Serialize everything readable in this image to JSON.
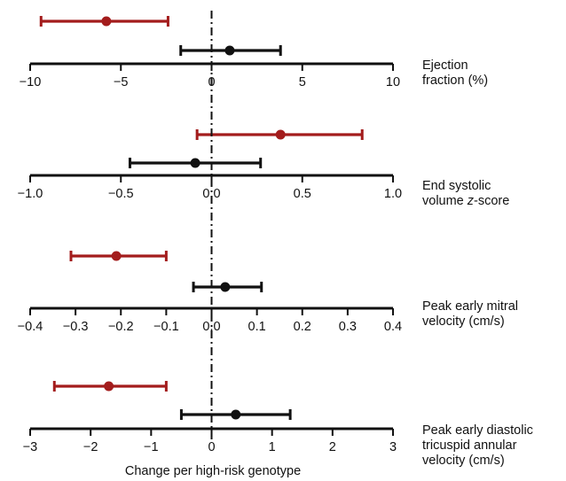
{
  "chart_data": [
    {
      "type": "forest",
      "label_lines": [
        "Ejection",
        "fraction (%)"
      ],
      "tick_labels": [
        "−10",
        "−5",
        "0",
        "5",
        "10"
      ],
      "xlim": [
        -10,
        10
      ],
      "ticks": [
        -10,
        -5,
        0,
        5,
        10
      ],
      "series": [
        {
          "color": "#a31c1c",
          "estimate": -5.8,
          "lower": -9.4,
          "upper": -2.4
        },
        {
          "color": "#111111",
          "estimate": 1.0,
          "lower": -1.7,
          "upper": 3.8
        }
      ]
    },
    {
      "type": "forest",
      "label_lines": [
        "End systolic",
        "volume z-score"
      ],
      "tick_labels": [
        "−1.0",
        "−0.5",
        "0.0",
        "0.5",
        "1.0"
      ],
      "xlim": [
        -1.0,
        1.0
      ],
      "ticks": [
        -1.0,
        -0.5,
        0.0,
        0.5,
        1.0
      ],
      "series": [
        {
          "color": "#a31c1c",
          "estimate": 0.38,
          "lower": -0.08,
          "upper": 0.83
        },
        {
          "color": "#111111",
          "estimate": -0.09,
          "lower": -0.45,
          "upper": 0.27
        }
      ]
    },
    {
      "type": "forest",
      "label_lines": [
        "Peak early mitral",
        "velocity (cm/s)"
      ],
      "tick_labels": [
        "−0.4",
        "−0.3",
        "−0.2",
        "−0.1",
        "0.0",
        "0.1",
        "0.2",
        "0.3",
        "0.4"
      ],
      "xlim": [
        -0.4,
        0.4
      ],
      "ticks": [
        -0.4,
        -0.3,
        -0.2,
        -0.1,
        0.0,
        0.1,
        0.2,
        0.3,
        0.4
      ],
      "series": [
        {
          "color": "#a31c1c",
          "estimate": -0.21,
          "lower": -0.31,
          "upper": -0.1
        },
        {
          "color": "#111111",
          "estimate": 0.03,
          "lower": -0.04,
          "upper": 0.11
        }
      ]
    },
    {
      "type": "forest",
      "label_lines": [
        "Peak early diastolic",
        "tricuspid annular",
        "velocity (cm/s)"
      ],
      "tick_labels": [
        "−3",
        "−2",
        "−1",
        "0",
        "1",
        "2",
        "3"
      ],
      "xlim": [
        -3,
        3
      ],
      "ticks": [
        -3,
        -2,
        -1,
        0,
        1,
        2,
        3
      ],
      "series": [
        {
          "color": "#a31c1c",
          "estimate": -1.7,
          "lower": -2.6,
          "upper": -0.75
        },
        {
          "color": "#111111",
          "estimate": 0.4,
          "lower": -0.5,
          "upper": 1.3
        }
      ]
    }
  ],
  "xlabel": "Change per high-risk genotype"
}
